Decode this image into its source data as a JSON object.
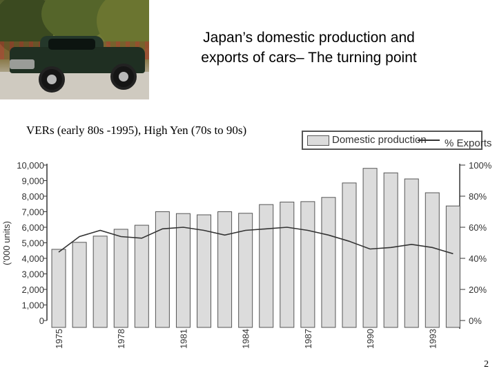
{
  "header": {
    "title_line1": "Japan’s domestic production and",
    "title_line2": "exports of cars– The turning point",
    "subtitle": "VERs (early 80s -1995), High Yen (70s to 90s)"
  },
  "photo": {
    "icon": "pickup-truck-photo"
  },
  "legend": {
    "series1": "Domestic production",
    "series2": "% Exports"
  },
  "page_number": "2",
  "chart_data": {
    "type": "bar",
    "categories": [
      "1975",
      "1976",
      "1977",
      "1978",
      "1979",
      "1980",
      "1981",
      "1982",
      "1983",
      "1984",
      "1985",
      "1986",
      "1987",
      "1988",
      "1989",
      "1990",
      "1991",
      "1992",
      "1993",
      "1994"
    ],
    "x_tick_labels": [
      "1975",
      "1978",
      "1981",
      "1984",
      "1987",
      "1990",
      "1993"
    ],
    "series": [
      {
        "name": "Domestic production",
        "type": "bar",
        "axis": "left",
        "values": [
          4580,
          5030,
          5430,
          5870,
          6130,
          7000,
          6880,
          6800,
          7000,
          6900,
          7460,
          7620,
          7650,
          7920,
          8850,
          9790,
          9500,
          9110,
          8220,
          7370
        ],
        "color": "#dcdcdc"
      },
      {
        "name": "% Exports",
        "type": "line",
        "axis": "right",
        "values": [
          44,
          54,
          58,
          54,
          53,
          59,
          60,
          58,
          55,
          58,
          59,
          60,
          58,
          55,
          51,
          46,
          47,
          49,
          47,
          43
        ],
        "color": "#333333"
      }
    ],
    "ylabel": "('000 units)",
    "y_left": {
      "min": 0,
      "max": 10000,
      "ticks": [
        "0",
        "1,000",
        "2,000",
        "3,000",
        "4,000",
        "5,000",
        "6,000",
        "7,000",
        "8,000",
        "9,000",
        "10,000"
      ]
    },
    "y_right": {
      "min": 0,
      "max": 100,
      "ticks": [
        "0%",
        "20%",
        "40%",
        "60%",
        "80%",
        "100%"
      ]
    },
    "grid": false,
    "legend_position": "top-right"
  }
}
